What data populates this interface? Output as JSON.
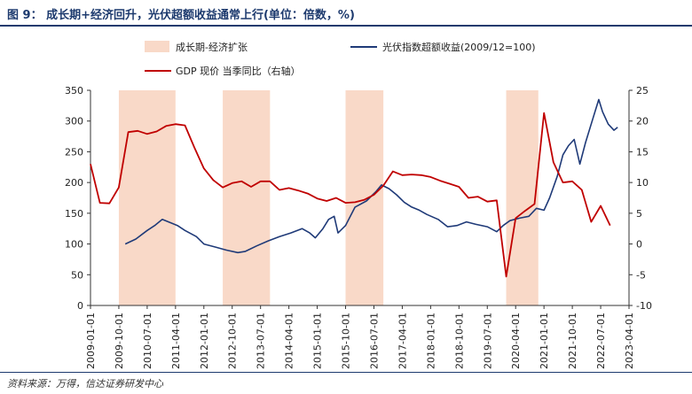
{
  "header": {
    "title": "图 9： 成长期+经济回升，光伏超额收益通常上行(单位：倍数，%)"
  },
  "footer": {
    "source": "资料来源：万得，信达证券研发中心"
  },
  "colors": {
    "index_line": "#1f3a78",
    "gdp_line": "#c00000",
    "band": "#f9d9c8",
    "title": "#1d3a6e"
  },
  "chart_data": {
    "type": "line",
    "title": "成长期+经济回升，光伏超额收益通常上行(单位：倍数，%)",
    "x_categories": [
      "2009-01-01",
      "2009-10-01",
      "2010-07-01",
      "2011-04-01",
      "2012-01-01",
      "2012-10-01",
      "2013-07-01",
      "2014-04-01",
      "2015-01-01",
      "2015-10-01",
      "2016-07-01",
      "2017-04-01",
      "2018-01-01",
      "2018-10-01",
      "2019-07-01",
      "2020-04-01",
      "2021-01-01",
      "2021-10-01",
      "2022-07-01",
      "2023-04-01"
    ],
    "y_left": {
      "min": 0,
      "max": 350,
      "ticks": [
        0,
        50,
        100,
        150,
        200,
        250,
        300,
        350
      ]
    },
    "y_right": {
      "min": -10,
      "max": 25,
      "ticks": [
        -10,
        -5,
        0,
        5,
        10,
        15,
        20,
        25
      ]
    },
    "legend": {
      "band": "成长期-经济扩张",
      "index": "光伏指数超额收益(2009/12=100)",
      "gdp": "GDP 现价 当季同比（右轴）"
    },
    "bands": [
      {
        "start": 2009.75,
        "end": 2011.25
      },
      {
        "start": 2012.5,
        "end": 2013.75
      },
      {
        "start": 2015.75,
        "end": 2016.75
      },
      {
        "start": 2020.0,
        "end": 2020.85
      }
    ],
    "series": [
      {
        "name": "光伏指数超额收益(2009/12=100)",
        "axis": "left",
        "points": [
          [
            2009.92,
            100
          ],
          [
            2010.2,
            108
          ],
          [
            2010.5,
            122
          ],
          [
            2010.7,
            130
          ],
          [
            2010.9,
            140
          ],
          [
            2011.1,
            135
          ],
          [
            2011.3,
            130
          ],
          [
            2011.5,
            122
          ],
          [
            2011.8,
            112
          ],
          [
            2012.0,
            100
          ],
          [
            2012.3,
            95
          ],
          [
            2012.6,
            90
          ],
          [
            2012.9,
            86
          ],
          [
            2013.1,
            88
          ],
          [
            2013.4,
            97
          ],
          [
            2013.7,
            105
          ],
          [
            2014.0,
            112
          ],
          [
            2014.3,
            118
          ],
          [
            2014.6,
            125
          ],
          [
            2014.8,
            118
          ],
          [
            2014.95,
            110
          ],
          [
            2015.15,
            125
          ],
          [
            2015.3,
            140
          ],
          [
            2015.45,
            145
          ],
          [
            2015.55,
            118
          ],
          [
            2015.75,
            130
          ],
          [
            2016.0,
            160
          ],
          [
            2016.3,
            170
          ],
          [
            2016.55,
            185
          ],
          [
            2016.7,
            196
          ],
          [
            2016.9,
            190
          ],
          [
            2017.1,
            180
          ],
          [
            2017.3,
            168
          ],
          [
            2017.5,
            160
          ],
          [
            2017.7,
            155
          ],
          [
            2017.9,
            148
          ],
          [
            2018.2,
            140
          ],
          [
            2018.45,
            128
          ],
          [
            2018.7,
            130
          ],
          [
            2018.95,
            136
          ],
          [
            2019.2,
            132
          ],
          [
            2019.5,
            128
          ],
          [
            2019.75,
            120
          ],
          [
            2019.92,
            130
          ],
          [
            2020.1,
            138
          ],
          [
            2020.35,
            142
          ],
          [
            2020.6,
            145
          ],
          [
            2020.8,
            158
          ],
          [
            2021.0,
            155
          ],
          [
            2021.15,
            175
          ],
          [
            2021.35,
            210
          ],
          [
            2021.5,
            245
          ],
          [
            2021.65,
            260
          ],
          [
            2021.8,
            270
          ],
          [
            2021.95,
            230
          ],
          [
            2022.1,
            265
          ],
          [
            2022.3,
            305
          ],
          [
            2022.45,
            335
          ],
          [
            2022.55,
            315
          ],
          [
            2022.7,
            295
          ],
          [
            2022.85,
            285
          ],
          [
            2022.95,
            290
          ]
        ]
      },
      {
        "name": "GDP 现价 当季同比（右轴）",
        "axis": "right",
        "points": [
          [
            2009.0,
            13
          ],
          [
            2009.25,
            6.7
          ],
          [
            2009.5,
            6.6
          ],
          [
            2009.75,
            9.2
          ],
          [
            2010.0,
            18.2
          ],
          [
            2010.25,
            18.4
          ],
          [
            2010.5,
            17.9
          ],
          [
            2010.75,
            18.3
          ],
          [
            2011.0,
            19.2
          ],
          [
            2011.25,
            19.5
          ],
          [
            2011.5,
            19.3
          ],
          [
            2011.75,
            15.7
          ],
          [
            2012.0,
            12.3
          ],
          [
            2012.25,
            10.4
          ],
          [
            2012.5,
            9.2
          ],
          [
            2012.75,
            9.9
          ],
          [
            2013.0,
            10.2
          ],
          [
            2013.25,
            9.3
          ],
          [
            2013.5,
            10.2
          ],
          [
            2013.75,
            10.2
          ],
          [
            2014.0,
            8.8
          ],
          [
            2014.25,
            9.1
          ],
          [
            2014.5,
            8.7
          ],
          [
            2014.75,
            8.2
          ],
          [
            2015.0,
            7.4
          ],
          [
            2015.25,
            7.0
          ],
          [
            2015.5,
            7.5
          ],
          [
            2015.75,
            6.7
          ],
          [
            2016.0,
            6.8
          ],
          [
            2016.25,
            7.2
          ],
          [
            2016.5,
            8.0
          ],
          [
            2016.75,
            9.5
          ],
          [
            2017.0,
            11.8
          ],
          [
            2017.25,
            11.2
          ],
          [
            2017.5,
            11.3
          ],
          [
            2017.75,
            11.2
          ],
          [
            2018.0,
            10.9
          ],
          [
            2018.25,
            10.3
          ],
          [
            2018.5,
            9.8
          ],
          [
            2018.75,
            9.3
          ],
          [
            2019.0,
            7.5
          ],
          [
            2019.25,
            7.7
          ],
          [
            2019.5,
            6.9
          ],
          [
            2019.75,
            7.1
          ],
          [
            2020.0,
            -5.3
          ],
          [
            2020.25,
            4.2
          ],
          [
            2020.5,
            5.4
          ],
          [
            2020.75,
            6.5
          ],
          [
            2021.0,
            21.3
          ],
          [
            2021.25,
            13.3
          ],
          [
            2021.5,
            10.0
          ],
          [
            2021.75,
            10.2
          ],
          [
            2022.0,
            8.8
          ],
          [
            2022.25,
            3.6
          ],
          [
            2022.5,
            6.2
          ],
          [
            2022.75,
            3.0
          ]
        ]
      }
    ]
  }
}
